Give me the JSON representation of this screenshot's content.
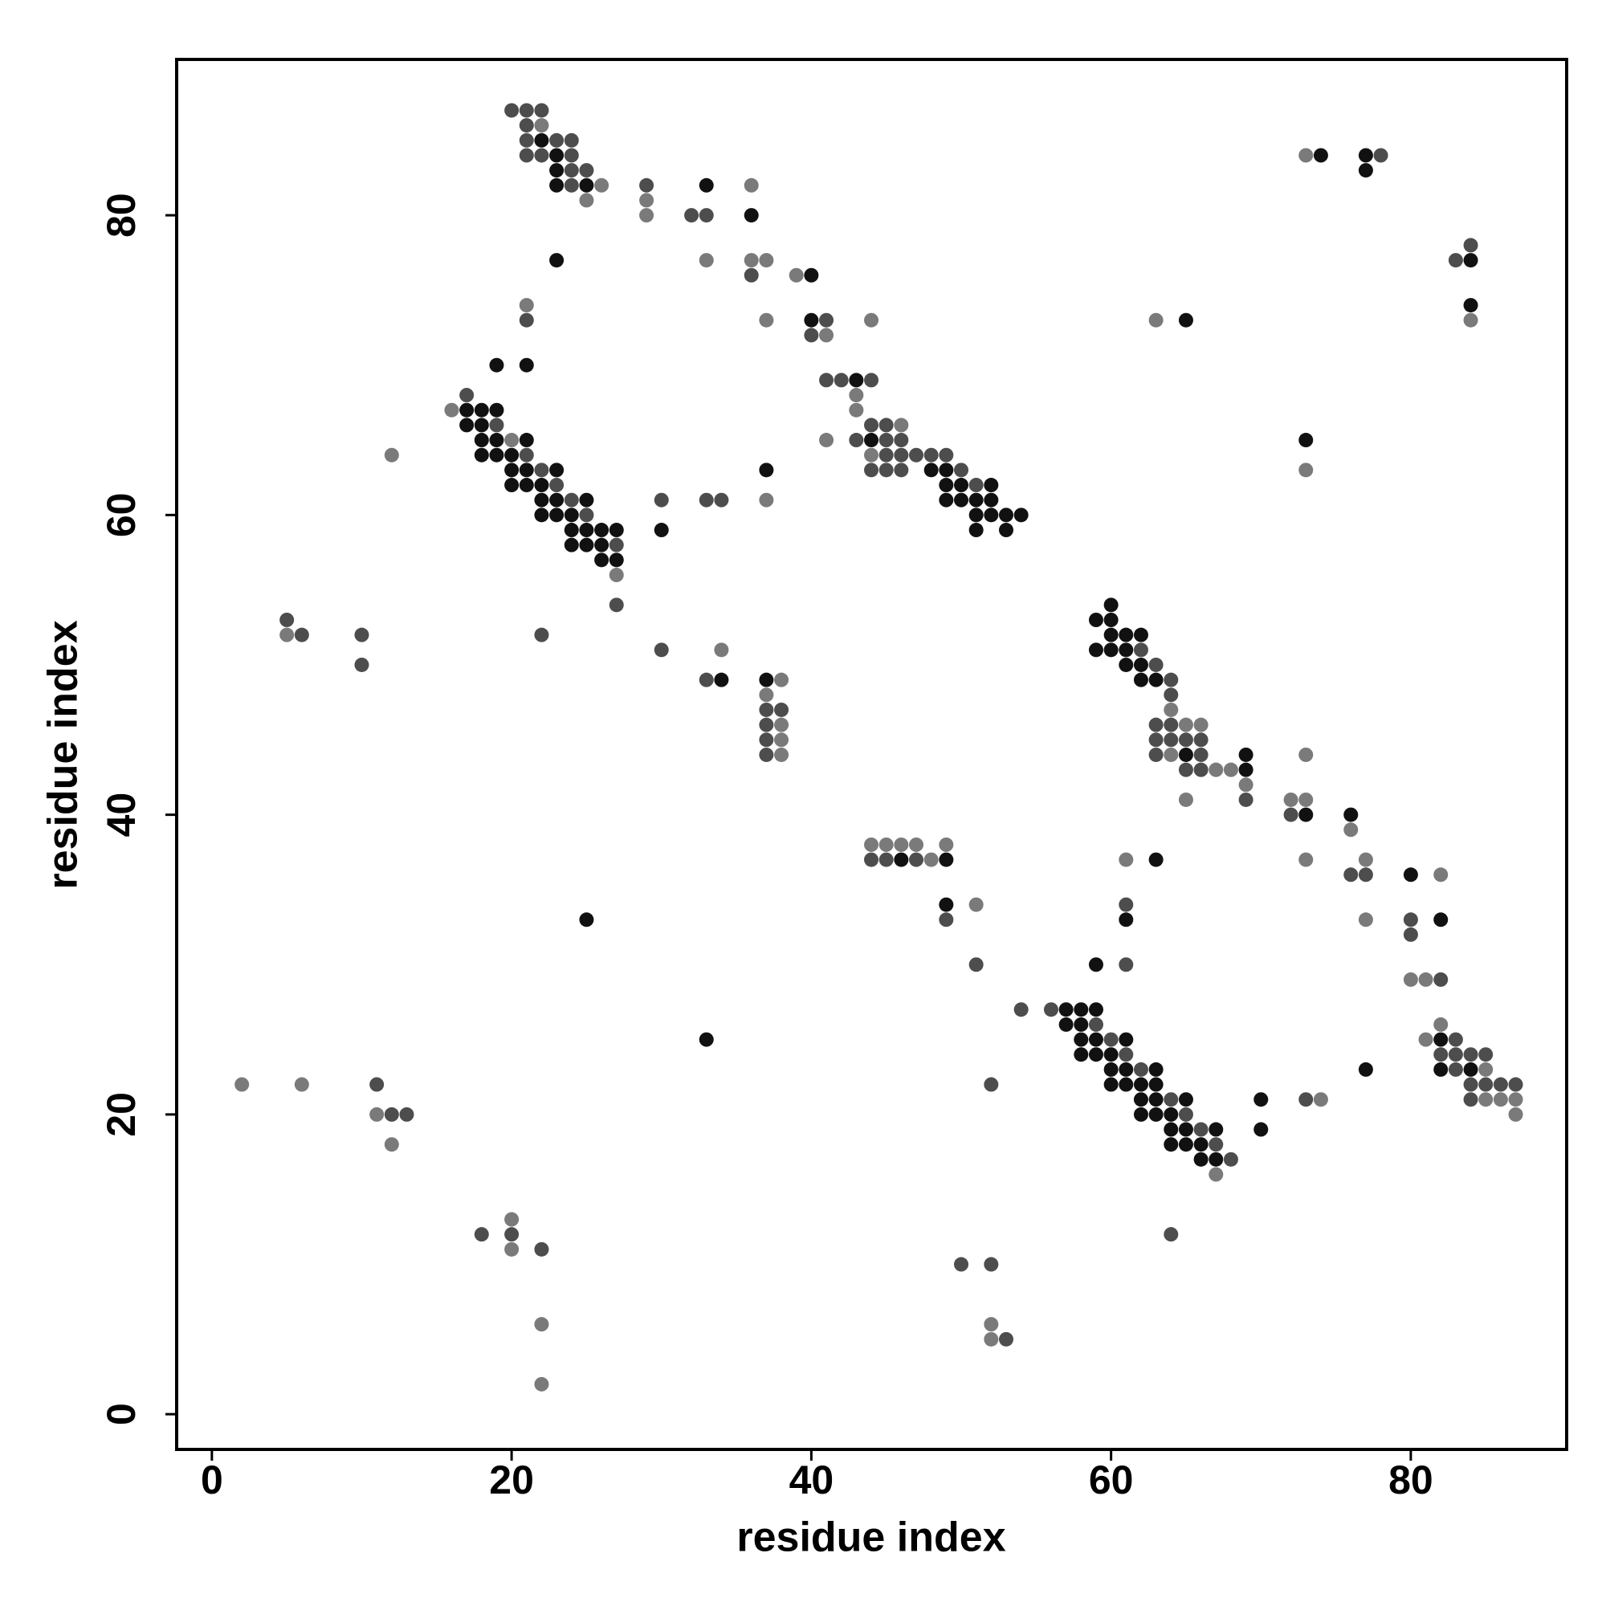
{
  "chart_data": {
    "type": "scatter",
    "xlabel": "residue index",
    "ylabel": "residue index",
    "xlim": [
      -2.35,
      90.4
    ],
    "ylim": [
      -2.35,
      90.4
    ],
    "xticks": [
      0,
      20,
      40,
      60,
      80
    ],
    "yticks": [
      0,
      20,
      40,
      60,
      80
    ],
    "grid": false,
    "series": [
      {
        "color": "#111111",
        "x": [
          22,
          23,
          23,
          23,
          25,
          33,
          36,
          74,
          77,
          77,
          23,
          84,
          40,
          84,
          40,
          65,
          19,
          21,
          43,
          17,
          18,
          19,
          17,
          18,
          18,
          19,
          21,
          44,
          73,
          18,
          19,
          20,
          20,
          21,
          23,
          37,
          48,
          49,
          20,
          21,
          22,
          49,
          50,
          52,
          22,
          23,
          25,
          49,
          50,
          51,
          52,
          22,
          23,
          24,
          51,
          52,
          53,
          54,
          24,
          25,
          26,
          27,
          30,
          51,
          53,
          24,
          25,
          26,
          26,
          27,
          60,
          59,
          60,
          60,
          61,
          62,
          59,
          60,
          61,
          61,
          62,
          34,
          37,
          62,
          63,
          65,
          69,
          69,
          73,
          76,
          46,
          49,
          63,
          80,
          49,
          25,
          61,
          82,
          59,
          57,
          58,
          59,
          57,
          58,
          33,
          58,
          59,
          61,
          82,
          58,
          59,
          60,
          60,
          61,
          63,
          77,
          82,
          84,
          60,
          61,
          62,
          63,
          62,
          63,
          65,
          70,
          62,
          63,
          64,
          64,
          65,
          67,
          70,
          64,
          65,
          66,
          66,
          67
        ],
        "values": [
          85,
          84,
          83,
          82,
          82,
          82,
          80,
          84,
          84,
          83,
          77,
          77,
          76,
          74,
          73,
          73,
          70,
          70,
          69,
          67,
          67,
          67,
          66,
          66,
          65,
          65,
          65,
          65,
          65,
          64,
          64,
          64,
          63,
          63,
          63,
          63,
          63,
          63,
          62,
          62,
          62,
          62,
          62,
          62,
          61,
          61,
          61,
          61,
          61,
          61,
          61,
          60,
          60,
          60,
          60,
          60,
          60,
          60,
          59,
          59,
          59,
          59,
          59,
          59,
          59,
          58,
          58,
          58,
          57,
          57,
          54,
          53,
          53,
          52,
          52,
          52,
          51,
          51,
          51,
          50,
          50,
          49,
          49,
          49,
          49,
          44,
          44,
          43,
          40,
          40,
          37,
          37,
          37,
          36,
          34,
          33,
          33,
          33,
          30,
          27,
          27,
          27,
          26,
          26,
          25,
          25,
          25,
          25,
          25,
          24,
          24,
          24,
          23,
          23,
          23,
          23,
          23,
          23,
          22,
          22,
          22,
          22,
          21,
          21,
          21,
          21,
          20,
          20,
          20,
          19,
          19,
          19,
          19,
          18,
          18,
          18,
          17,
          17
        ]
      },
      {
        "color": "#4d4d4d",
        "x": [
          20,
          21,
          22,
          21,
          21,
          23,
          24,
          21,
          22,
          24,
          24,
          25,
          24,
          29,
          32,
          33,
          78,
          83,
          84,
          36,
          21,
          41,
          40,
          41,
          42,
          44,
          17,
          19,
          44,
          45,
          43,
          45,
          46,
          21,
          45,
          46,
          47,
          48,
          49,
          22,
          44,
          45,
          46,
          50,
          23,
          51,
          24,
          30,
          33,
          34,
          25,
          27,
          27,
          5,
          6,
          10,
          22,
          30,
          62,
          10,
          63,
          33,
          64,
          64,
          37,
          38,
          37,
          63,
          64,
          37,
          63,
          64,
          65,
          66,
          37,
          63,
          66,
          65,
          66,
          69,
          72,
          44,
          45,
          47,
          76,
          77,
          49,
          61,
          80,
          80,
          51,
          61,
          82,
          54,
          56,
          59,
          60,
          83,
          61,
          82,
          83,
          84,
          85,
          62,
          83,
          11,
          52,
          84,
          85,
          86,
          87,
          64,
          73,
          84,
          12,
          13,
          65,
          66,
          67,
          68,
          18,
          20,
          64,
          22,
          50,
          52,
          53
        ],
        "values": [
          87,
          87,
          87,
          86,
          85,
          85,
          85,
          84,
          84,
          84,
          83,
          83,
          82,
          82,
          80,
          80,
          84,
          77,
          78,
          76,
          73,
          73,
          72,
          69,
          69,
          69,
          68,
          66,
          66,
          66,
          65,
          65,
          65,
          64,
          64,
          64,
          64,
          64,
          64,
          63,
          63,
          63,
          63,
          63,
          62,
          62,
          61,
          61,
          61,
          61,
          60,
          58,
          54,
          53,
          52,
          52,
          52,
          51,
          51,
          50,
          50,
          49,
          49,
          48,
          47,
          47,
          46,
          46,
          46,
          45,
          45,
          45,
          45,
          45,
          44,
          44,
          44,
          43,
          43,
          41,
          40,
          37,
          37,
          37,
          36,
          36,
          33,
          34,
          33,
          32,
          30,
          30,
          29,
          27,
          27,
          26,
          25,
          25,
          24,
          24,
          24,
          24,
          24,
          23,
          23,
          22,
          22,
          22,
          22,
          22,
          22,
          21,
          21,
          21,
          20,
          20,
          20,
          19,
          18,
          17,
          12,
          12,
          12,
          11,
          10,
          10,
          5
        ]
      },
      {
        "color": "#7a7a7a",
        "x": [
          22,
          26,
          36,
          25,
          29,
          29,
          73,
          33,
          36,
          37,
          39,
          21,
          37,
          44,
          63,
          84,
          41,
          43,
          16,
          43,
          46,
          20,
          41,
          12,
          44,
          73,
          37,
          27,
          5,
          34,
          38,
          37,
          64,
          38,
          65,
          66,
          38,
          38,
          64,
          73,
          67,
          68,
          69,
          65,
          72,
          73,
          76,
          44,
          45,
          46,
          47,
          49,
          48,
          61,
          73,
          77,
          82,
          51,
          77,
          80,
          81,
          82,
          81,
          85,
          2,
          6,
          74,
          85,
          86,
          87,
          11,
          87,
          12,
          67,
          20,
          20,
          22,
          52,
          52,
          22
        ],
        "values": [
          86,
          82,
          82,
          81,
          81,
          80,
          84,
          77,
          77,
          77,
          76,
          74,
          73,
          73,
          73,
          73,
          72,
          68,
          67,
          67,
          66,
          65,
          65,
          64,
          64,
          63,
          61,
          56,
          52,
          51,
          49,
          48,
          47,
          46,
          46,
          46,
          45,
          44,
          44,
          44,
          43,
          43,
          42,
          41,
          41,
          41,
          39,
          38,
          38,
          38,
          38,
          38,
          37,
          37,
          37,
          37,
          36,
          34,
          33,
          29,
          29,
          26,
          25,
          23,
          22,
          22,
          21,
          21,
          21,
          21,
          20,
          20,
          18,
          16,
          13,
          11,
          6,
          6,
          5,
          2
        ]
      }
    ]
  }
}
